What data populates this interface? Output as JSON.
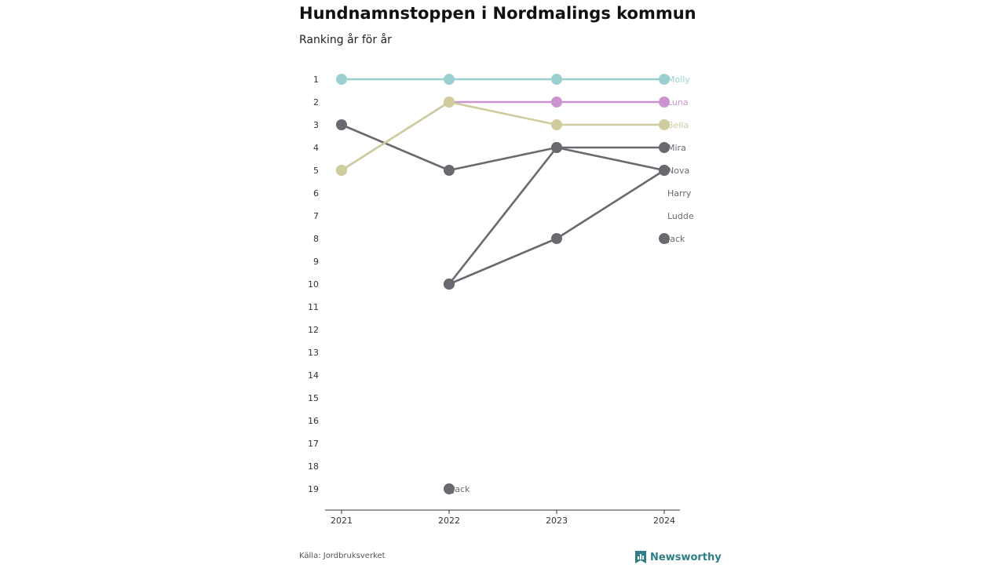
{
  "header": {
    "title": "Hundnamnstoppen i Nordmalings kommun",
    "subtitle": "Ranking år för år"
  },
  "footer": {
    "source": "Källa: Jordbruksverket",
    "brand": "Newsworthy",
    "brand_icon": "bar-chart-bookmark-icon"
  },
  "colors": {
    "Molly": "#9ccfcf",
    "Luna": "#cc94cf",
    "Bella": "#cfcd9e",
    "other": "#6a696f",
    "axis": "#333333",
    "label": "#333333"
  },
  "chart_data": {
    "type": "line",
    "title": "Hundnamnstoppen i Nordmalings kommun",
    "subtitle": "Ranking år för år",
    "x": [
      "2021",
      "2022",
      "2023",
      "2024"
    ],
    "y_ticks": [
      "1",
      "2",
      "3",
      "4",
      "5",
      "6",
      "7",
      "8",
      "9",
      "10",
      "11",
      "12",
      "13",
      "14",
      "15",
      "16",
      "17",
      "18",
      "19"
    ],
    "ylim": [
      1,
      19
    ],
    "y_reversed": true,
    "series": [
      {
        "name": "Molly",
        "color_key": "Molly",
        "values": [
          1,
          1,
          1,
          1
        ],
        "end_label": "Molly"
      },
      {
        "name": "Luna",
        "color_key": "Luna",
        "values": [
          5,
          2,
          2,
          2
        ],
        "end_label": "Luna"
      },
      {
        "name": "Bella",
        "color_key": "Bella",
        "values": [
          5,
          2,
          3,
          3
        ],
        "end_label": "Bella"
      },
      {
        "name": "Mira",
        "color_key": "other",
        "values": [
          3,
          5,
          4,
          4
        ],
        "end_label": "Mira"
      },
      {
        "name": "Nova",
        "color_key": "other",
        "values": [
          null,
          10,
          4,
          5
        ],
        "end_label": "Nova"
      },
      {
        "name": "Harry",
        "color_key": "other",
        "values": [
          null,
          10,
          8,
          5
        ],
        "end_label": "Harry"
      },
      {
        "name": "Ludde",
        "color_key": "other",
        "values": [
          null,
          null,
          null,
          7
        ],
        "end_label": "Ludde",
        "no_marker": true
      },
      {
        "name": "Jack",
        "color_key": "other",
        "values": [
          null,
          19,
          null,
          8
        ],
        "end_label": "Jack",
        "segment_labels": [
          {
            "index": 1,
            "text": "Jack"
          }
        ]
      }
    ],
    "end_labels_override": {
      "Harry": 6,
      "Ludde": 7
    }
  }
}
